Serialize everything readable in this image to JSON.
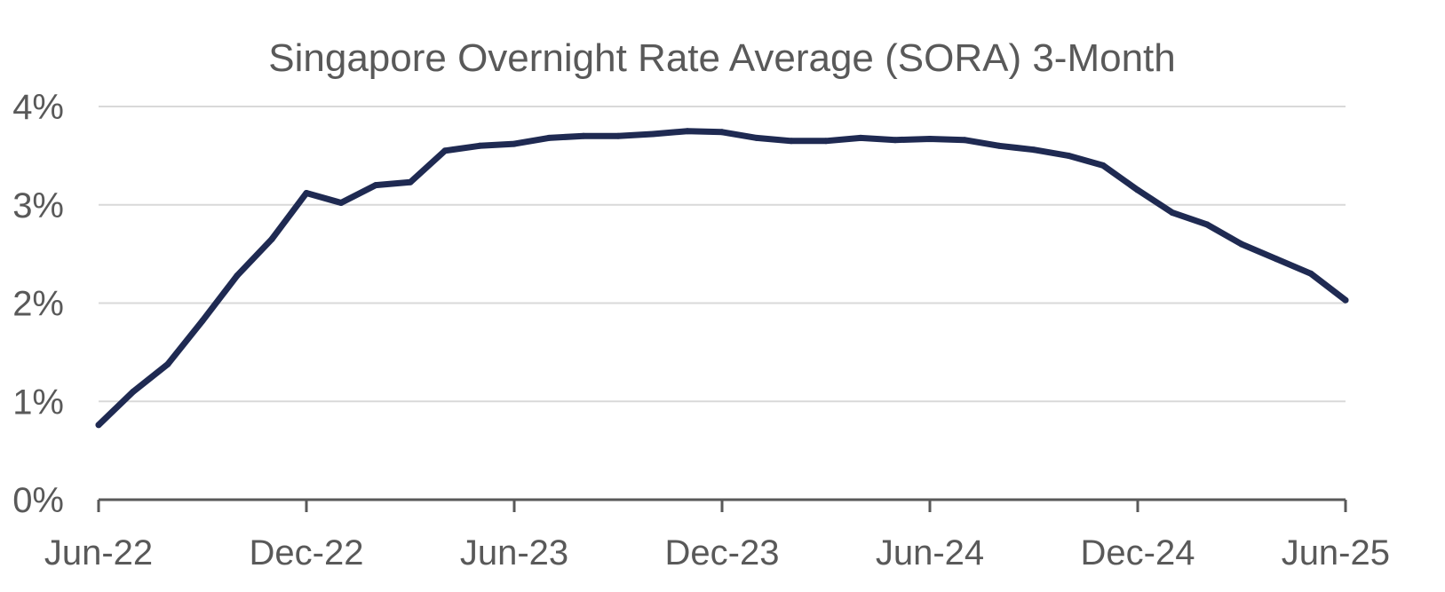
{
  "chart_data": {
    "type": "line",
    "title": "Singapore Overnight Rate Average (SORA) 3-Month",
    "xlabel": "",
    "ylabel": "",
    "x_tick_labels": [
      "Jun-22",
      "Dec-22",
      "Jun-23",
      "Dec-23",
      "Jun-24",
      "Dec-24",
      "Jun-25"
    ],
    "y_tick_labels": [
      "0%",
      "1%",
      "2%",
      "3%",
      "4%"
    ],
    "ylim": [
      0,
      4
    ],
    "xlim": [
      "2022-06",
      "2025-06"
    ],
    "grid": true,
    "legend": "none",
    "colors": {
      "line": "#1f2a52",
      "grid": "#d9d9d9",
      "axis": "#595959",
      "text": "#595959"
    },
    "series": [
      {
        "x": [
          "2022-06",
          "2022-07",
          "2022-08",
          "2022-09",
          "2022-10",
          "2022-11",
          "2022-12",
          "2023-01",
          "2023-02",
          "2023-03",
          "2023-04",
          "2023-05",
          "2023-06",
          "2023-07",
          "2023-08",
          "2023-09",
          "2023-10",
          "2023-11",
          "2023-12",
          "2024-01",
          "2024-02",
          "2024-03",
          "2024-04",
          "2024-05",
          "2024-06",
          "2024-07",
          "2024-08",
          "2024-09",
          "2024-10",
          "2024-11",
          "2024-12",
          "2025-01",
          "2025-02",
          "2025-03",
          "2025-04",
          "2025-05",
          "2025-06"
        ],
        "values": [
          0.76,
          1.1,
          1.38,
          1.82,
          2.28,
          2.65,
          3.12,
          3.02,
          3.2,
          3.23,
          3.55,
          3.6,
          3.62,
          3.68,
          3.7,
          3.7,
          3.72,
          3.75,
          3.74,
          3.68,
          3.65,
          3.65,
          3.68,
          3.66,
          3.67,
          3.66,
          3.6,
          3.56,
          3.5,
          3.4,
          3.15,
          2.92,
          2.8,
          2.6,
          2.45,
          2.3,
          2.03
        ]
      }
    ]
  }
}
